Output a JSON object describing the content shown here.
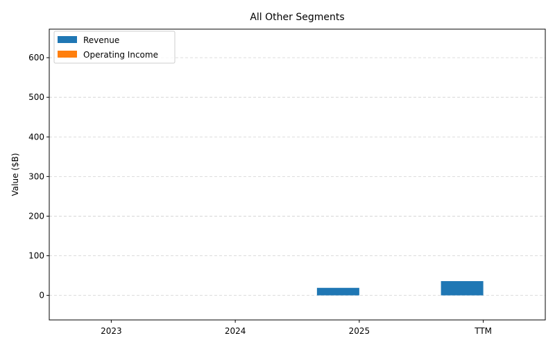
{
  "chart_data": {
    "type": "bar",
    "title": "All Other Segments",
    "xlabel": "",
    "ylabel": "Value ($B)",
    "categories": [
      "2023",
      "2024",
      "2025",
      "TTM"
    ],
    "series": [
      {
        "name": "Revenue",
        "color": "#1f77b4",
        "values": [
          0,
          0,
          19,
          36
        ]
      },
      {
        "name": "Operating Income",
        "color": "#ff7f0e",
        "values": [
          0,
          0,
          0,
          0
        ]
      }
    ],
    "ylim": [
      -62,
      672
    ],
    "yticks": [
      0,
      100,
      200,
      300,
      400,
      500,
      600
    ],
    "grid": "y-dashed",
    "legend_position": "top-left"
  }
}
